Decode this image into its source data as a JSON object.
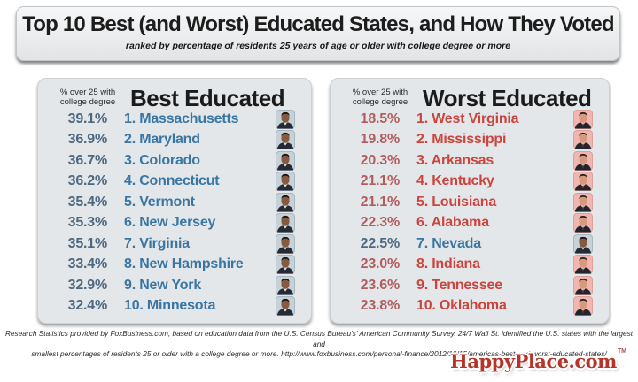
{
  "header": {
    "title": "Top 10 Best (and Worst) Educated States, and How They Voted",
    "subtitle": "ranked by percentage of residents 25 years of age or older with college degree or more"
  },
  "column_label": {
    "line1": "% over 25 with",
    "line2": "college degree"
  },
  "chart_data": {
    "type": "table",
    "title": "Top 10 Best (and Worst) Educated States, and How They Voted",
    "subtitle": "ranked by percentage of residents 25 years of age or older with college degree or more",
    "value_label": "% over 25 with college degree",
    "tables": [
      {
        "title": "Best Educated",
        "rows": [
          {
            "rank": 1,
            "state": "Massachusetts",
            "pct": 39.1,
            "voted": "Obama"
          },
          {
            "rank": 2,
            "state": "Maryland",
            "pct": 36.9,
            "voted": "Obama"
          },
          {
            "rank": 3,
            "state": "Colorado",
            "pct": 36.7,
            "voted": "Obama"
          },
          {
            "rank": 4,
            "state": "Connecticut",
            "pct": 36.2,
            "voted": "Obama"
          },
          {
            "rank": 5,
            "state": "Vermont",
            "pct": 35.4,
            "voted": "Obama"
          },
          {
            "rank": 6,
            "state": "New Jersey",
            "pct": 35.3,
            "voted": "Obama"
          },
          {
            "rank": 7,
            "state": "Virginia",
            "pct": 35.1,
            "voted": "Obama"
          },
          {
            "rank": 8,
            "state": "New Hampshire",
            "pct": 33.4,
            "voted": "Obama"
          },
          {
            "rank": 9,
            "state": "New York",
            "pct": 32.9,
            "voted": "Obama"
          },
          {
            "rank": 10,
            "state": "Minnesota",
            "pct": 32.4,
            "voted": "Obama"
          }
        ]
      },
      {
        "title": "Worst Educated",
        "rows": [
          {
            "rank": 1,
            "state": "West Virginia",
            "pct": 18.5,
            "voted": "Romney"
          },
          {
            "rank": 2,
            "state": "Mississippi",
            "pct": 19.8,
            "voted": "Romney"
          },
          {
            "rank": 3,
            "state": "Arkansas",
            "pct": 20.3,
            "voted": "Romney"
          },
          {
            "rank": 4,
            "state": "Kentucky",
            "pct": 21.1,
            "voted": "Romney"
          },
          {
            "rank": 5,
            "state": "Louisiana",
            "pct": 21.1,
            "voted": "Romney"
          },
          {
            "rank": 6,
            "state": "Alabama",
            "pct": 22.3,
            "voted": "Romney"
          },
          {
            "rank": 7,
            "state": "Nevada",
            "pct": 22.5,
            "voted": "Obama"
          },
          {
            "rank": 8,
            "state": "Indiana",
            "pct": 23.0,
            "voted": "Romney"
          },
          {
            "rank": 9,
            "state": "Tennessee",
            "pct": 23.6,
            "voted": "Romney"
          },
          {
            "rank": 10,
            "state": "Oklahoma",
            "pct": 23.8,
            "voted": "Romney"
          }
        ]
      }
    ]
  },
  "themes": {
    "Obama": {
      "pct_color": "#4d6880",
      "state_color": "#3a76a4",
      "portrait_bg": "#c6d1d9",
      "portrait_border": "#a9b7c0"
    },
    "Romney": {
      "pct_color": "#b25c5e",
      "state_color": "#cb453f",
      "portrait_bg": "#f2b6b2",
      "portrait_border": "#dda19c"
    }
  },
  "footer": {
    "line1": "Research Statistics provided by FoxBusiness.com, based on education data from the U.S. Census Bureau's' American Community Survey. 24/7 Wall St. identified the U.S. states with the largest and",
    "line2": "smallest percentages of residents 25 or older with a college degree or more. http://www.foxbusiness.com/personal-finance/2012/10/15/americas-best-and-worst-educated-states/"
  },
  "logo": {
    "text": "HappyPlace.com",
    "tm": "TM"
  }
}
